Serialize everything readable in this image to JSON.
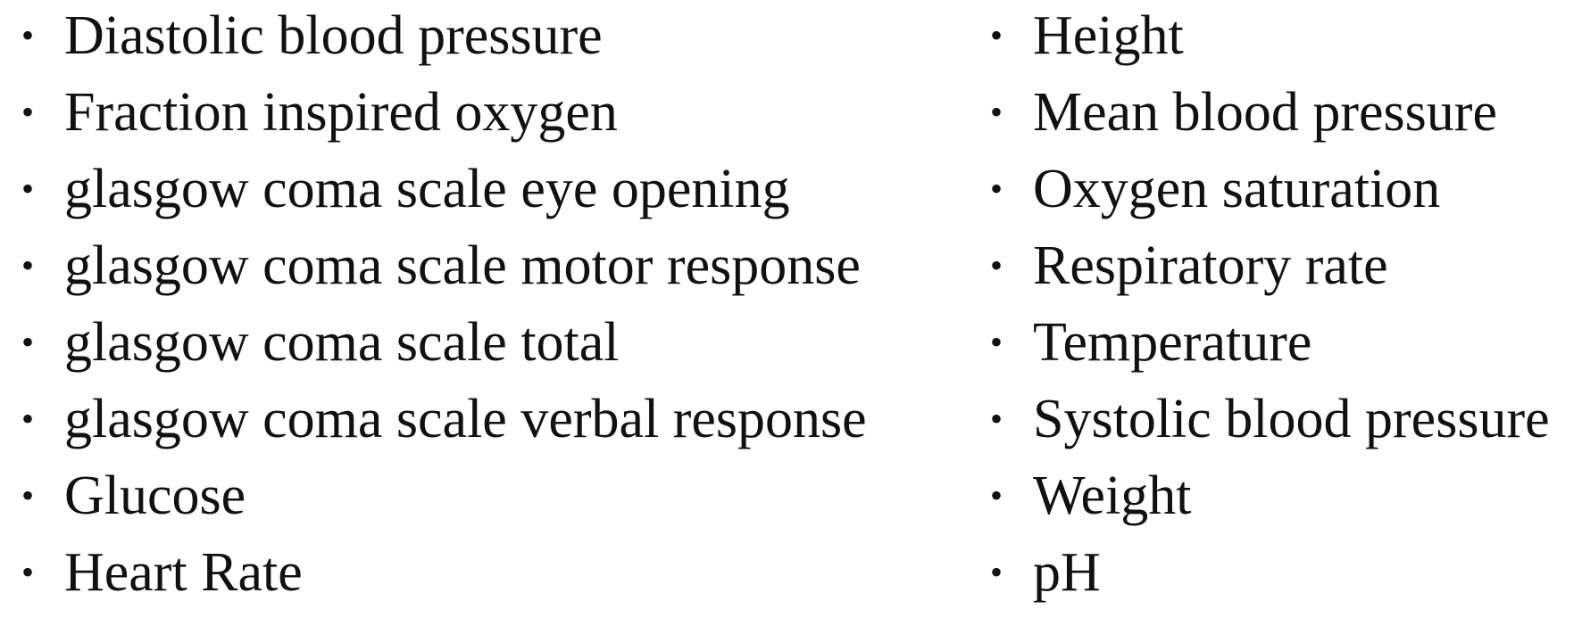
{
  "list": {
    "left": [
      "Diastolic blood pressure",
      "Fraction inspired oxygen",
      "glasgow coma scale eye opening",
      "glasgow coma scale motor response",
      "glasgow coma scale total",
      "glasgow coma scale verbal response",
      "Glucose",
      "Heart Rate"
    ],
    "right": [
      "Height",
      "Mean blood pressure",
      "Oxygen saturation",
      "Respiratory rate",
      "Temperature",
      "Systolic blood pressure",
      "Weight",
      "pH"
    ],
    "bullet_glyph": "•"
  }
}
